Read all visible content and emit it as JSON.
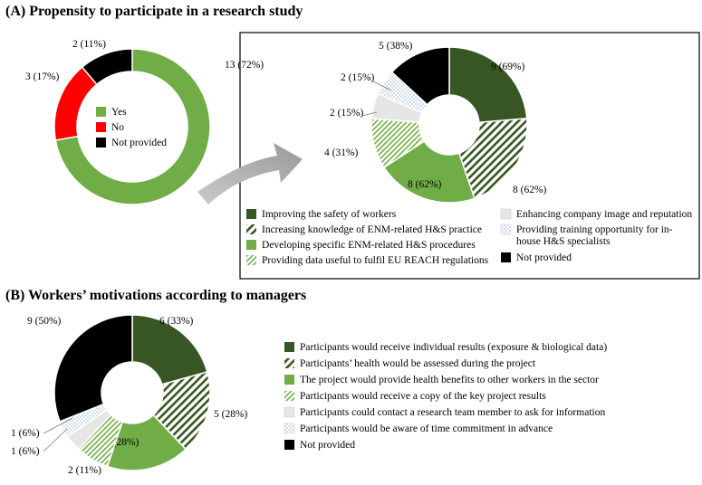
{
  "colors": {
    "dark_green": "#375623",
    "green": "#70ad47",
    "light_green": "#a9d08e",
    "light_gray": "#e7e6e6",
    "light_blue": "#dde8f5",
    "black": "#000000",
    "red": "#ff0000"
  },
  "chart_data": [
    {
      "type": "pie",
      "variant": "donut",
      "title": "(A) Propensity to participate in a research study",
      "series": [
        {
          "name": "Yes",
          "value": 13,
          "label": "13 (72%)",
          "color": "#70ad47",
          "pattern": "solid"
        },
        {
          "name": "No",
          "value": 3,
          "label": "3 (17%)",
          "color": "#ff0000",
          "pattern": "solid"
        },
        {
          "name": "Not provided",
          "value": 2,
          "label": "2 (11%)",
          "color": "#000000",
          "pattern": "solid"
        }
      ],
      "legend_position": "center"
    },
    {
      "type": "pie",
      "variant": "donut",
      "title": "",
      "series": [
        {
          "name": "Improving the safety of workers",
          "value": 9,
          "label": "9 (69%)",
          "color": "#375623",
          "pattern": "solid"
        },
        {
          "name": "Increasing knowledge of ENM-related H&S practice",
          "value": 8,
          "label": "8 (62%)",
          "color": "#375623",
          "pattern": "hatch"
        },
        {
          "name": "Developing specific ENM-related H&S procedures",
          "value": 8,
          "label": "8 (62%)",
          "color": "#70ad47",
          "pattern": "solid"
        },
        {
          "name": "Providing data useful to fulfil EU REACH regulations",
          "value": 4,
          "label": "4 (31%)",
          "color": "#70ad47",
          "pattern": "hatch-light"
        },
        {
          "name": "Enhancing company image and reputation",
          "value": 2,
          "label": "2 (15%)",
          "color": "#e7e6e6",
          "pattern": "solid"
        },
        {
          "name": "Providing training opportunity for in-house H&S specialists",
          "value": 2,
          "label": "2 (15%)",
          "color": "#dde8f5",
          "pattern": "dots"
        },
        {
          "name": "Not provided",
          "value": 5,
          "label": "5 (38%)",
          "color": "#000000",
          "pattern": "solid"
        }
      ],
      "legend_position": "bottom"
    },
    {
      "type": "pie",
      "variant": "donut",
      "title": "(B) Workers’ motivations according to managers",
      "series": [
        {
          "name": "Participants would receive individual results (exposure & biological data)",
          "value": 6,
          "label": "6 (33%)",
          "color": "#375623",
          "pattern": "solid"
        },
        {
          "name": "Participants’ health would be assessed during the project",
          "value": 5,
          "label": "5 (28%)",
          "color": "#375623",
          "pattern": "hatch"
        },
        {
          "name": "The project would provide health benefits to other workers in the sector",
          "value": 5,
          "label": "5 (28%)",
          "color": "#70ad47",
          "pattern": "solid"
        },
        {
          "name": "Participants would receive a copy of the key project results",
          "value": 2,
          "label": "2 (11%)",
          "color": "#70ad47",
          "pattern": "hatch-light"
        },
        {
          "name": "Participants could contact a research team member to ask for information",
          "value": 1,
          "label": "1 (6%)",
          "color": "#e7e6e6",
          "pattern": "solid"
        },
        {
          "name": "Participants would be aware of time commitment in advance",
          "value": 1,
          "label": "1 (6%)",
          "color": "#dde8f5",
          "pattern": "dots"
        },
        {
          "name": "Not provided",
          "value": 9,
          "label": "9 (50%)",
          "color": "#000000",
          "pattern": "solid"
        }
      ],
      "legend_position": "right"
    }
  ]
}
